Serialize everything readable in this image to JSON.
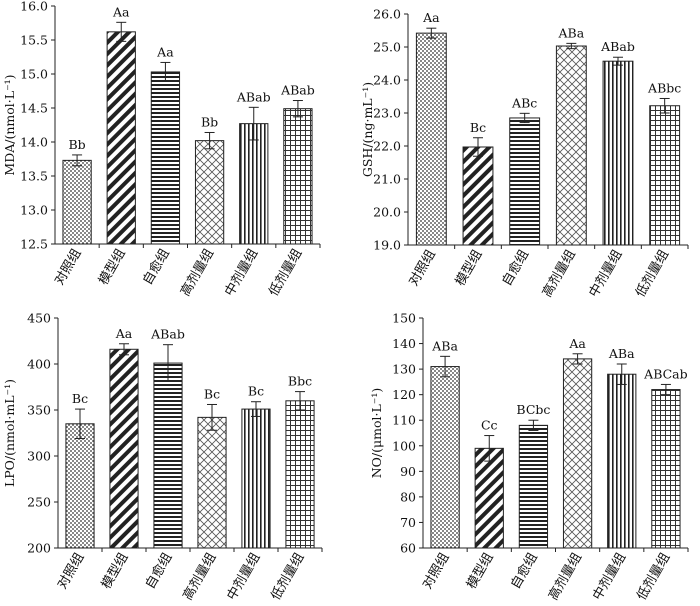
{
  "chart_data": [
    {
      "type": "bar",
      "ylabel": "MDA/(nmol·L⁻¹)",
      "ylim": [
        12.5,
        16.0
      ],
      "yticks": [
        "12.5",
        "13.0",
        "13.5",
        "14.0",
        "14.5",
        "15.0",
        "15.5",
        "16.0"
      ],
      "categories": [
        "对照组",
        "模型组",
        "自愈组",
        "高剂量组",
        "中剂量组",
        "低剂量组"
      ],
      "values": [
        13.73,
        15.62,
        15.03,
        14.02,
        14.27,
        14.49
      ],
      "errors": [
        0.08,
        0.14,
        0.14,
        0.12,
        0.24,
        0.12
      ],
      "labels": [
        "Bb",
        "Aa",
        "Aa",
        "Bb",
        "ABab",
        "ABab"
      ]
    },
    {
      "type": "bar",
      "ylabel": "GSH/(ng·mL⁻¹)",
      "ylim": [
        19.0,
        26.0
      ],
      "yticks": [
        "19.0",
        "20.0",
        "21.0",
        "22.0",
        "23.0",
        "24.0",
        "25.0",
        "26.0"
      ],
      "categories": [
        "对照组",
        "模型组",
        "自愈组",
        "高剂量组",
        "中剂量组",
        "低剂量组"
      ],
      "values": [
        25.42,
        21.97,
        22.85,
        25.03,
        24.57,
        23.22
      ],
      "errors": [
        0.15,
        0.28,
        0.14,
        0.08,
        0.12,
        0.22
      ],
      "labels": [
        "Aa",
        "Bc",
        "ABc",
        "ABa",
        "ABab",
        "ABbc"
      ]
    },
    {
      "type": "bar",
      "ylabel": "LPO/(nmol·mL⁻¹)",
      "ylim": [
        200,
        450
      ],
      "yticks": [
        "200",
        "250",
        "300",
        "350",
        "400",
        "450"
      ],
      "categories": [
        "对照组",
        "模型组",
        "自愈组",
        "高剂量组",
        "中剂量组",
        "低剂量组"
      ],
      "values": [
        335,
        416,
        401,
        342,
        351,
        360
      ],
      "errors": [
        16,
        6,
        20,
        14,
        8,
        10
      ],
      "labels": [
        "Bc",
        "Aa",
        "ABab",
        "Bc",
        "Bc",
        "Bbc"
      ]
    },
    {
      "type": "bar",
      "ylabel": "NO/(μmol·L⁻¹)",
      "ylim": [
        60,
        150
      ],
      "yticks": [
        "60",
        "70",
        "80",
        "90",
        "100",
        "110",
        "120",
        "130",
        "140",
        "150"
      ],
      "categories": [
        "对照组",
        "模型组",
        "自愈组",
        "高剂量组",
        "中剂量组",
        "低剂量组"
      ],
      "values": [
        131,
        99,
        108,
        134,
        128,
        122
      ],
      "errors": [
        4,
        5,
        2,
        2,
        4,
        2
      ],
      "labels": [
        "ABa",
        "Cc",
        "BCbc",
        "Aa",
        "ABa",
        "ABCab"
      ]
    }
  ]
}
